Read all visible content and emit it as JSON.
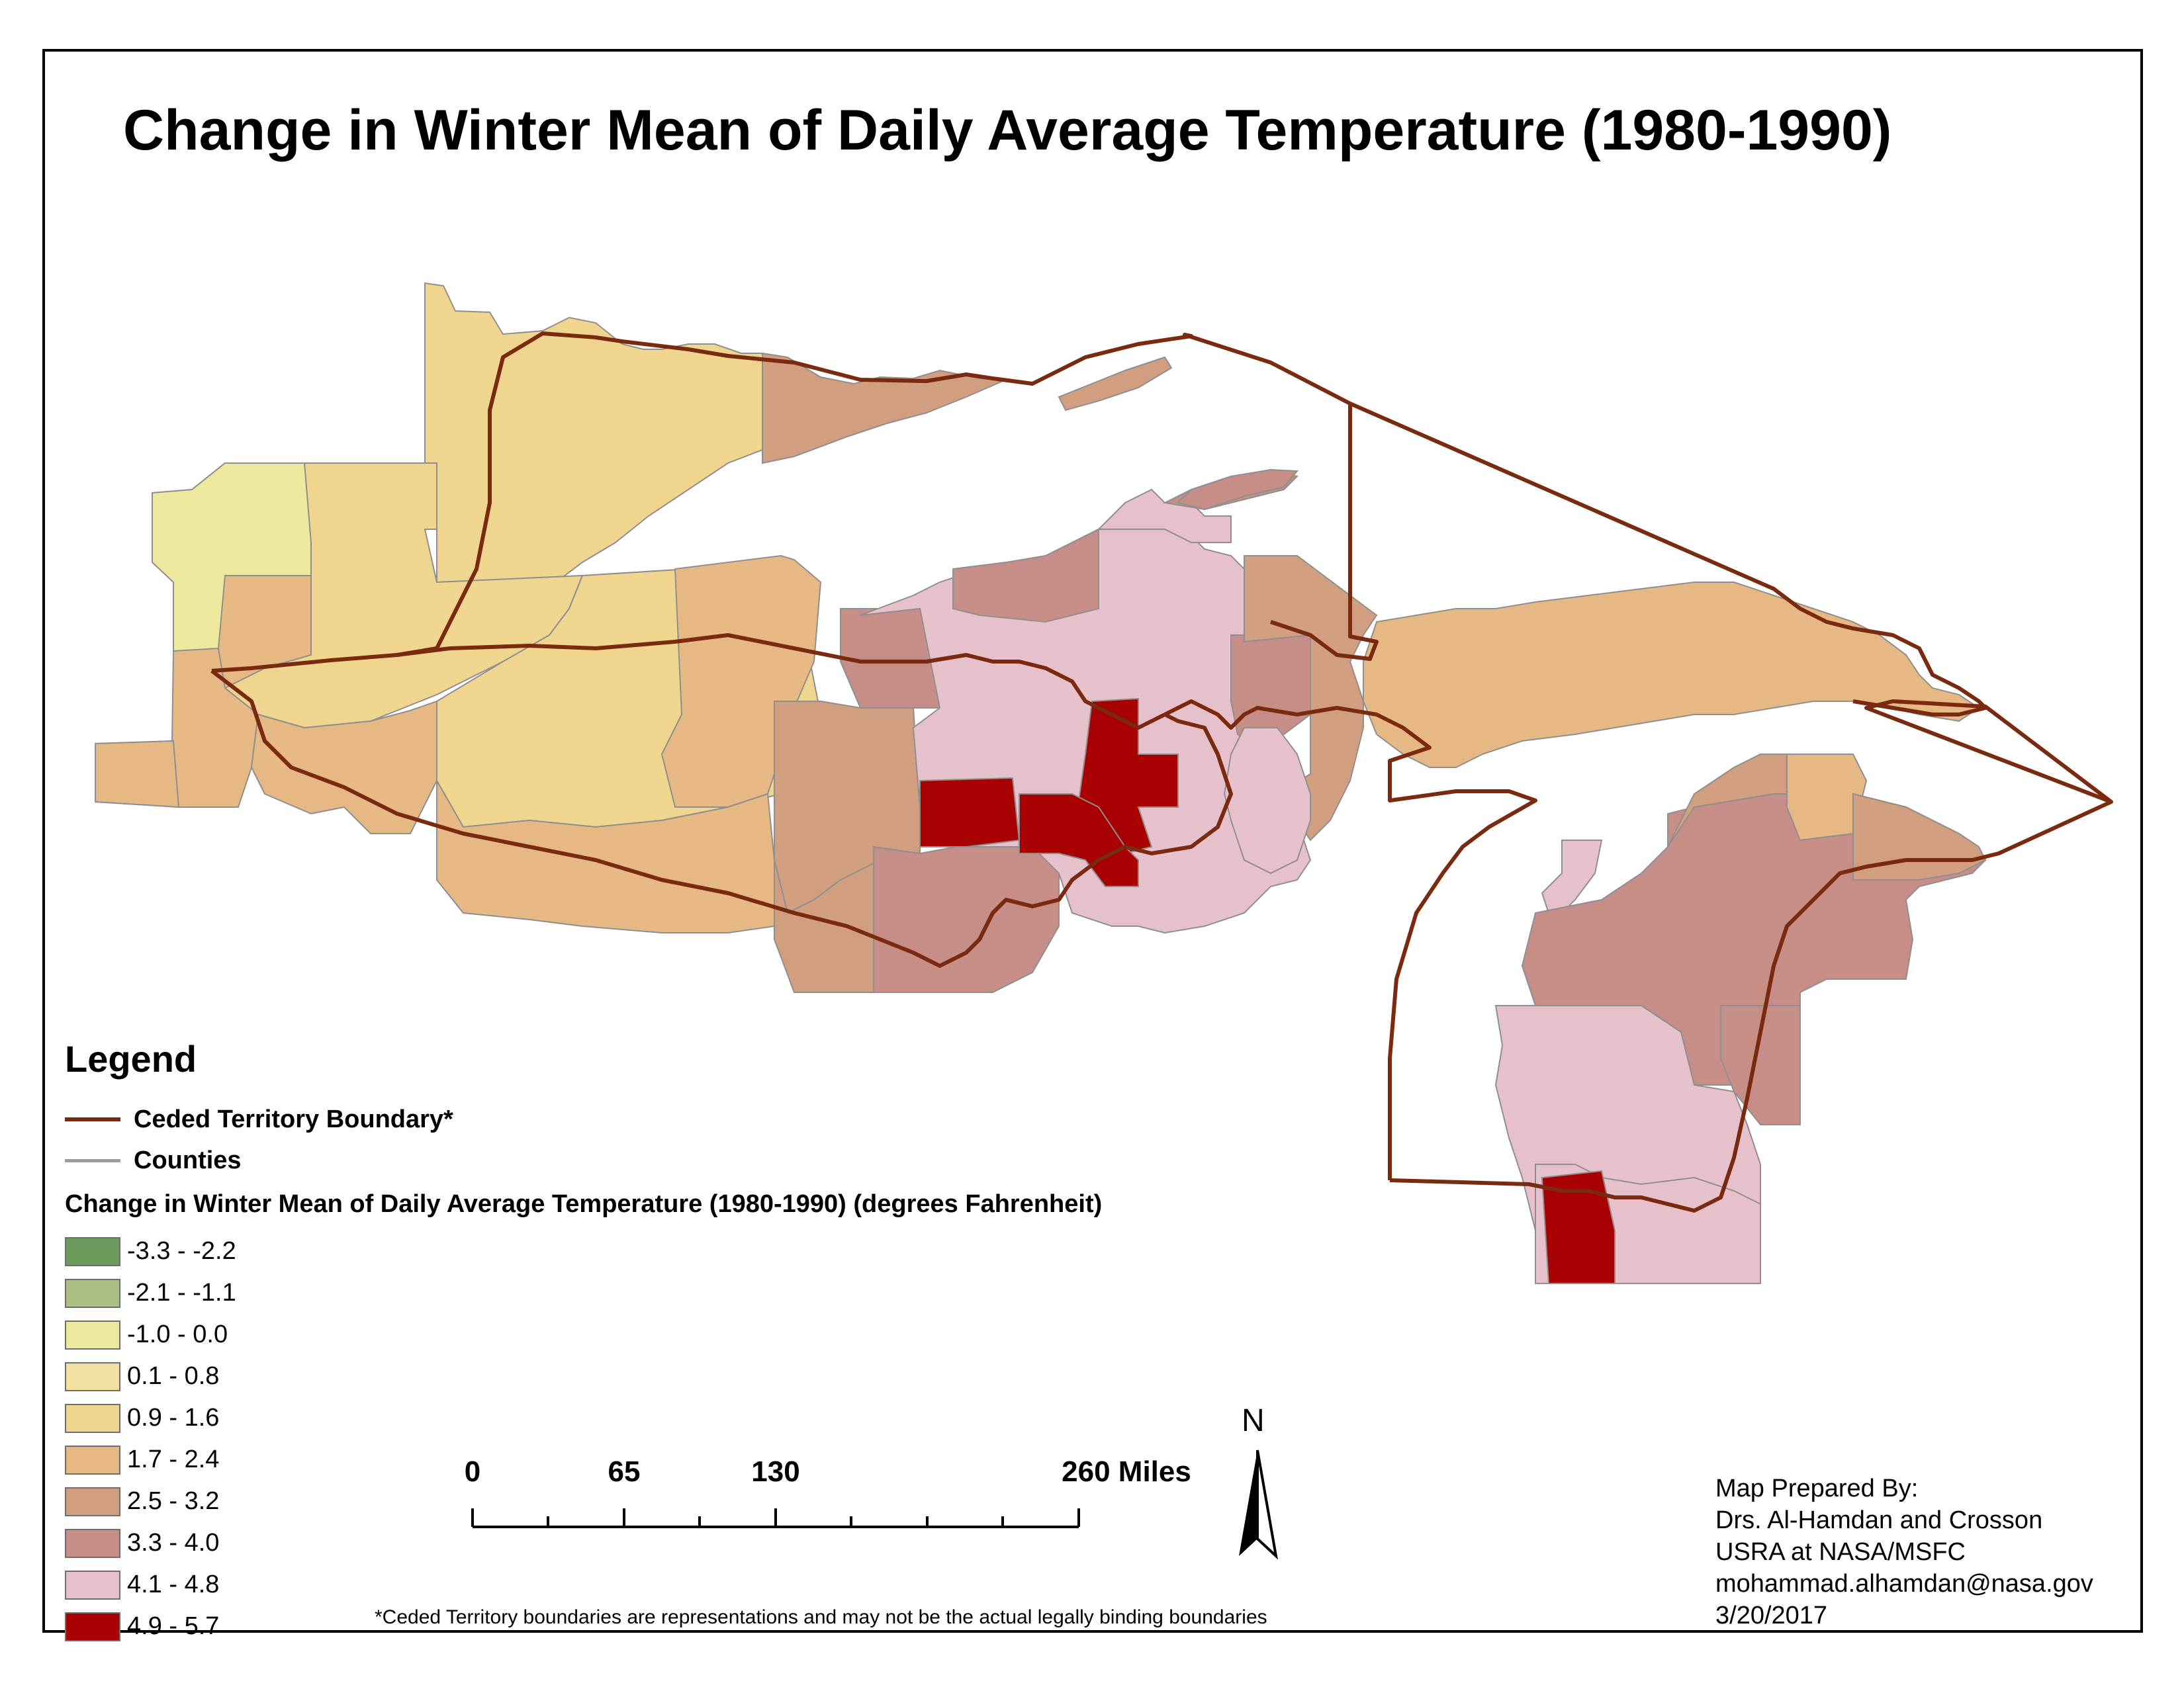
{
  "title": "Change in Winter Mean of Daily Average Temperature (1980-1990)",
  "legend": {
    "heading": "Legend",
    "lines": [
      {
        "label": "Ceded Territory Boundary*",
        "color": "#7a2a0e"
      },
      {
        "label": "Counties",
        "color": "#9e9e9e"
      }
    ],
    "class_title": "Change in Winter Mean of Daily Average Temperature (1980-1990) (degrees Fahrenheit)",
    "classes": [
      {
        "label": "-3.3 - -2.2",
        "color": "#6b9a5a"
      },
      {
        "label": "-2.1 - -1.1",
        "color": "#a9c082"
      },
      {
        "label": "-1.0 - 0.0",
        "color": "#ece99e"
      },
      {
        "label": "0.1 - 0.8",
        "color": "#f2e1a0"
      },
      {
        "label": "0.9 - 1.6",
        "color": "#f0d58f"
      },
      {
        "label": "1.7 - 2.4",
        "color": "#e6b884"
      },
      {
        "label": "2.5 - 3.2",
        "color": "#d29e80"
      },
      {
        "label": "3.3 - 4.0",
        "color": "#c68e86"
      },
      {
        "label": "4.1 - 4.8",
        "color": "#e6c1cc"
      },
      {
        "label": "4.9 - 5.7",
        "color": "#a80000"
      }
    ]
  },
  "scale_bar": {
    "ticks": [
      "0",
      "65",
      "130",
      "260 Miles"
    ],
    "tick_values": [
      0,
      65,
      130,
      260
    ]
  },
  "north_arrow": {
    "label": "N"
  },
  "credits": {
    "line1": "Map Prepared By:",
    "line2": "Drs. Al-Hamdan and Crosson",
    "line3": "USRA at NASA/MSFC",
    "line4": "mohammad.alhamdan@nasa.gov",
    "line5": "3/20/2017"
  },
  "footnote": "*Ceded Territory boundaries are representations and may not be the actual legally binding boundaries"
}
